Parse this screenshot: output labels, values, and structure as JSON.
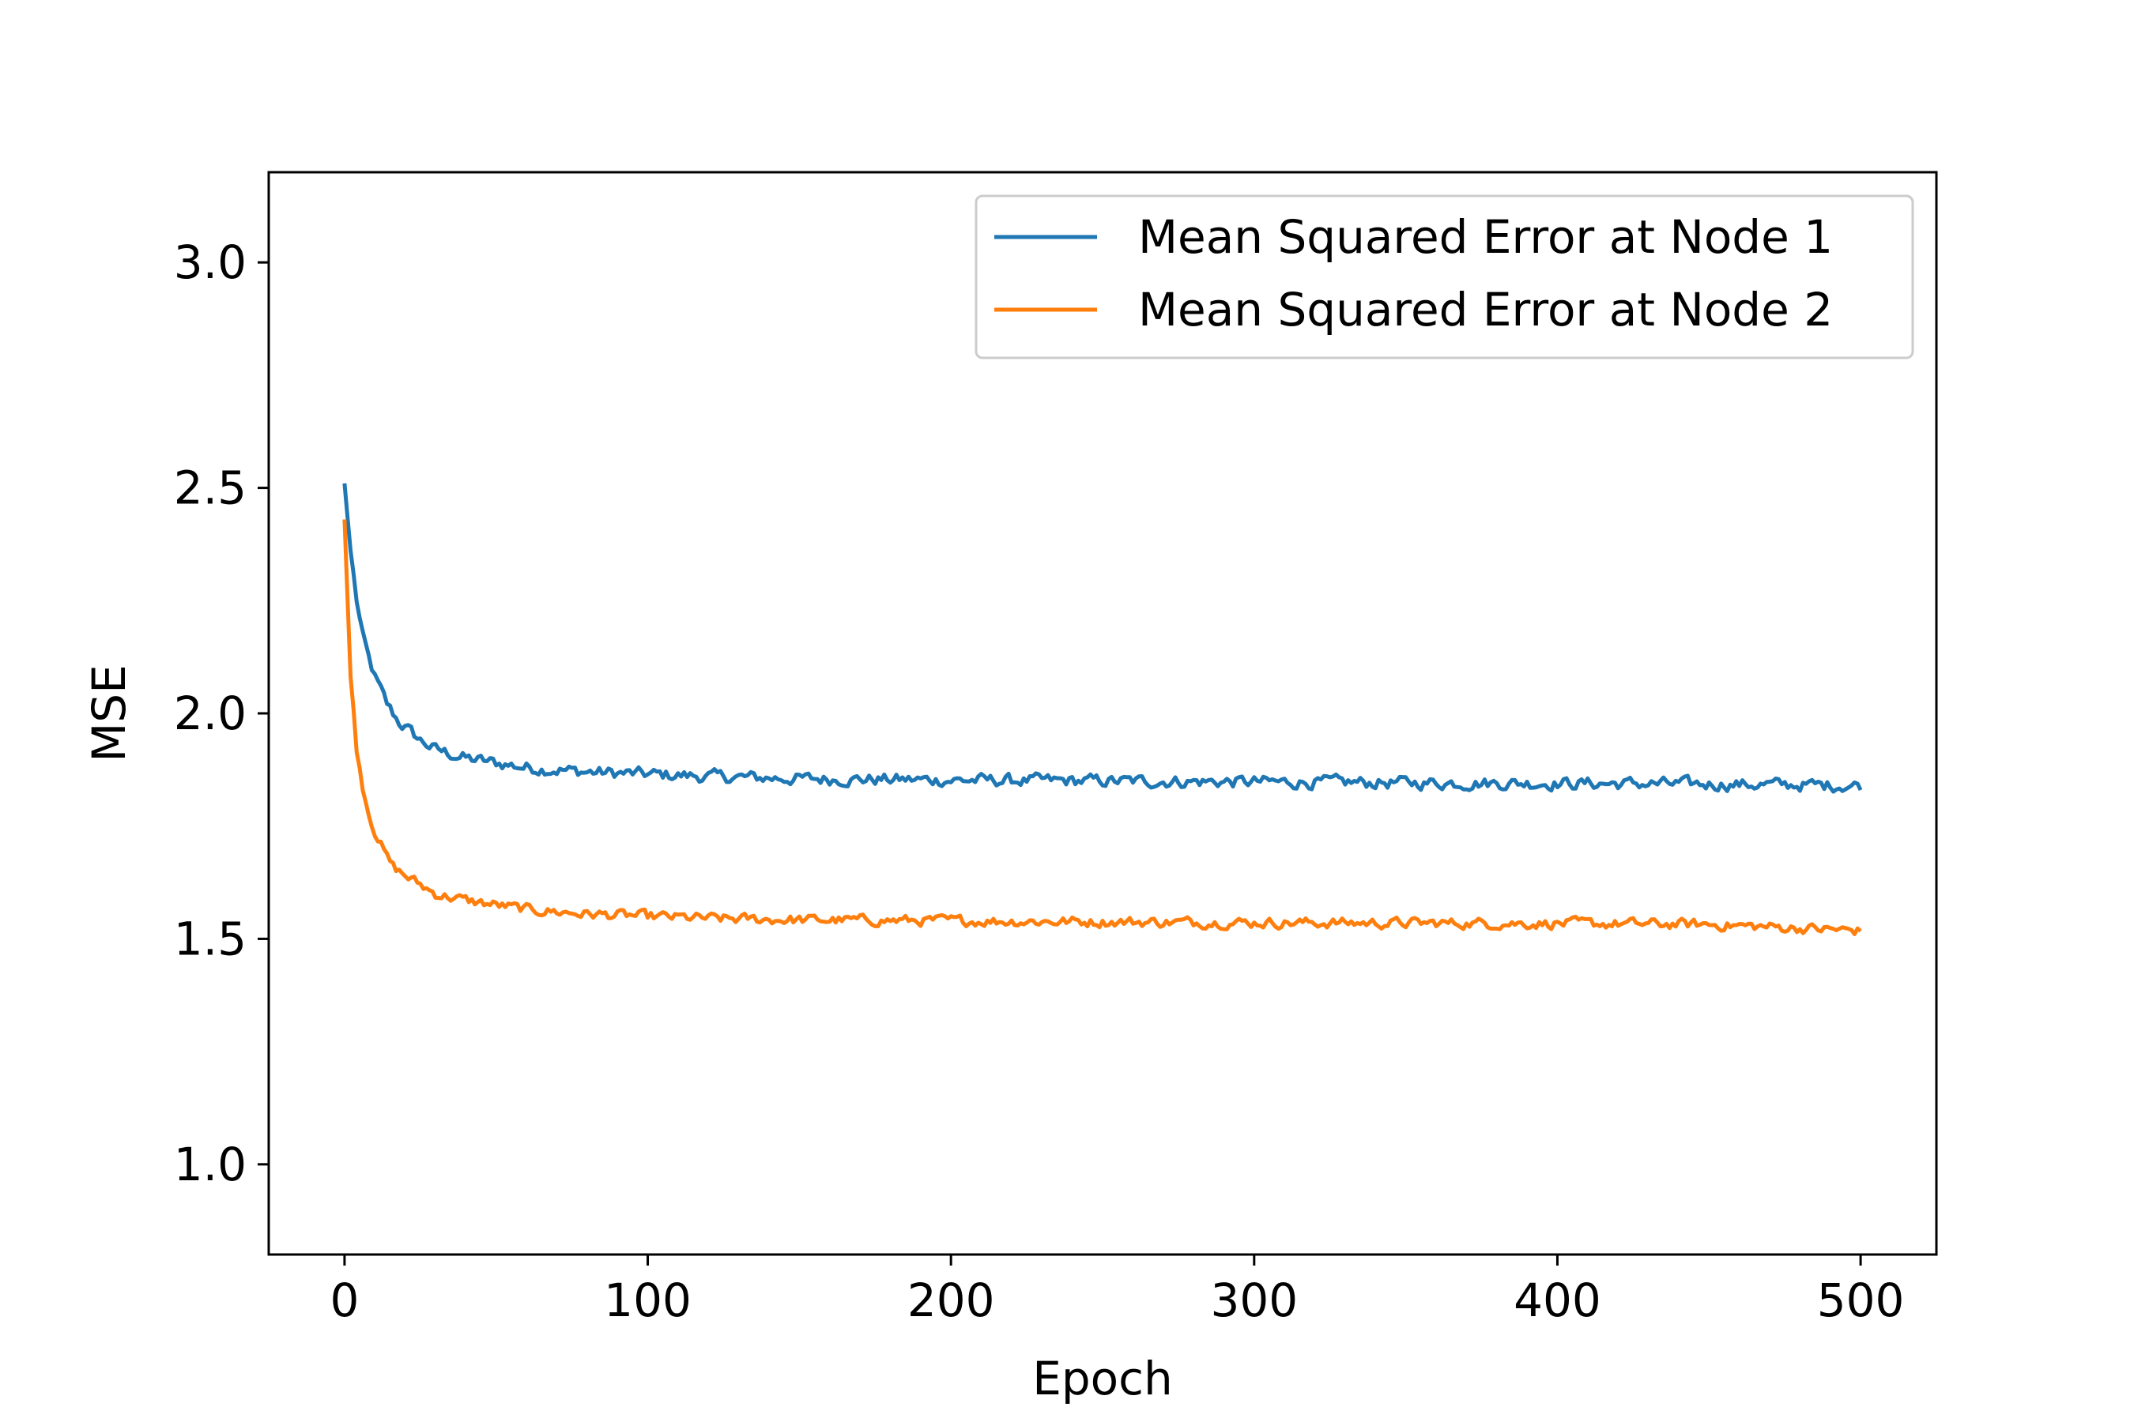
{
  "chart_data": {
    "type": "line",
    "title": "",
    "xlabel": "Epoch",
    "ylabel": "MSE",
    "xlim": [
      -25,
      525
    ],
    "ylim": [
      0.8,
      3.2
    ],
    "xticks": [
      0,
      100,
      200,
      300,
      400,
      500
    ],
    "xtick_labels": [
      "0",
      "100",
      "200",
      "300",
      "400",
      "500"
    ],
    "yticks": [
      1.0,
      1.5,
      2.0,
      2.5,
      3.0
    ],
    "ytick_labels": [
      "1.0",
      "1.5",
      "2.0",
      "2.5",
      "3.0"
    ],
    "grid": false,
    "legend_position": "top-right",
    "series": [
      {
        "name": "Mean Squared Error at Node 1",
        "color": "#1f77b4",
        "x": [
          0,
          2,
          4,
          6,
          8,
          10,
          12,
          14,
          16,
          18,
          20,
          25,
          30,
          40,
          50,
          60,
          70,
          80,
          100,
          120,
          150,
          200,
          250,
          300,
          350,
          400,
          450,
          500
        ],
        "y": [
          2.51,
          2.36,
          2.25,
          2.17,
          2.12,
          2.08,
          2.05,
          2.02,
          2.0,
          1.98,
          1.97,
          1.94,
          1.92,
          1.9,
          1.89,
          1.88,
          1.875,
          1.87,
          1.865,
          1.86,
          1.855,
          1.852,
          1.85,
          1.848,
          1.846,
          1.845,
          1.843,
          1.84
        ],
        "noise": 0.012
      },
      {
        "name": "Mean Squared Error at Node 2",
        "color": "#ff7f0e",
        "x": [
          0,
          2,
          4,
          6,
          8,
          10,
          12,
          14,
          16,
          18,
          20,
          25,
          30,
          40,
          50,
          60,
          70,
          80,
          100,
          120,
          150,
          200,
          250,
          300,
          350,
          400,
          450,
          500
        ],
        "y": [
          2.43,
          2.08,
          1.92,
          1.84,
          1.78,
          1.74,
          1.71,
          1.68,
          1.66,
          1.65,
          1.64,
          1.62,
          1.6,
          1.585,
          1.575,
          1.565,
          1.56,
          1.555,
          1.55,
          1.545,
          1.542,
          1.54,
          1.538,
          1.536,
          1.535,
          1.534,
          1.532,
          1.518
        ],
        "noise": 0.01
      }
    ]
  }
}
